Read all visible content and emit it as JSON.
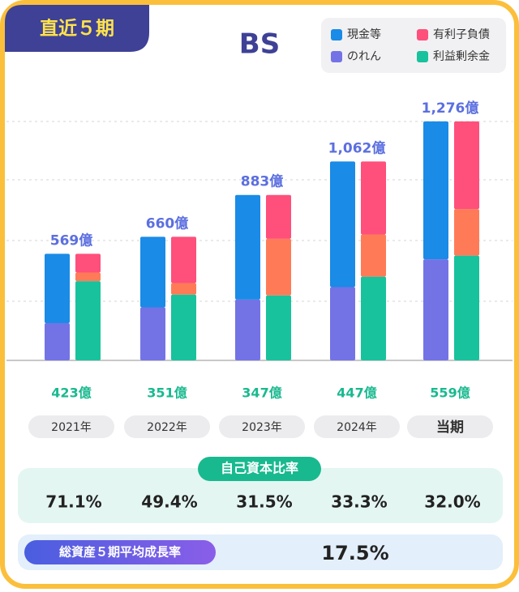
{
  "header": {
    "badge": "直近５期"
  },
  "chart_data": {
    "type": "bar",
    "title": "BS",
    "categories": [
      "2021年",
      "2022年",
      "2023年",
      "2024年",
      "当期"
    ],
    "series": [
      {
        "name": "現金等",
        "color": "#1a8be6",
        "values": [
          370,
          377,
          558,
          671,
          736
        ]
      },
      {
        "name": "有利子負債",
        "color": "#ff4f7b",
        "values": [
          100,
          247,
          234,
          390,
          468
        ]
      },
      {
        "name": "のれん",
        "color": "#7373e6",
        "values": [
          199,
          283,
          325,
          391,
          540
        ]
      },
      {
        "name": "利益剰余金",
        "color": "#18c29c",
        "values": [
          423,
          351,
          347,
          447,
          559
        ],
        "value_labels": [
          "423億",
          "351億",
          "347億",
          "447億",
          "559億"
        ]
      },
      {
        "color": "#ff7b57",
        "values": [
          46,
          62,
          302,
          225,
          249
        ]
      }
    ],
    "totals": [
      569,
      660,
      883,
      1062,
      1276
    ],
    "total_labels": [
      "569億",
      "660億",
      "883億",
      "1,062億",
      "1,276億"
    ],
    "ylim": [
      0,
      1500
    ]
  },
  "equity_ratio": {
    "title": "自己資本比率",
    "values": [
      "71.1%",
      "49.4%",
      "31.5%",
      "33.3%",
      "32.0%"
    ]
  },
  "growth": {
    "title": "総資産５期平均成長率",
    "value": "17.5%"
  }
}
